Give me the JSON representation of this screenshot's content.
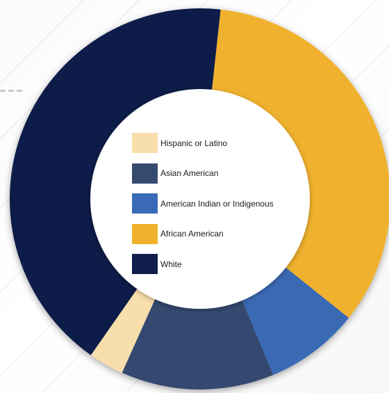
{
  "chart_data": {
    "type": "donut",
    "title": "",
    "legend_placement": "center",
    "series": [
      {
        "name": "Hispanic or Latino",
        "value": 3,
        "color": "#f8deaa"
      },
      {
        "name": "Asian American",
        "value": 13,
        "color": "#364a6f"
      },
      {
        "name": "American Indian or Indigenous",
        "value": 8,
        "color": "#3a6ab5"
      },
      {
        "name": "African American",
        "value": 34,
        "color": "#f0b22e"
      },
      {
        "name": "White",
        "value": 42,
        "color": "#111d4a"
      }
    ]
  }
}
